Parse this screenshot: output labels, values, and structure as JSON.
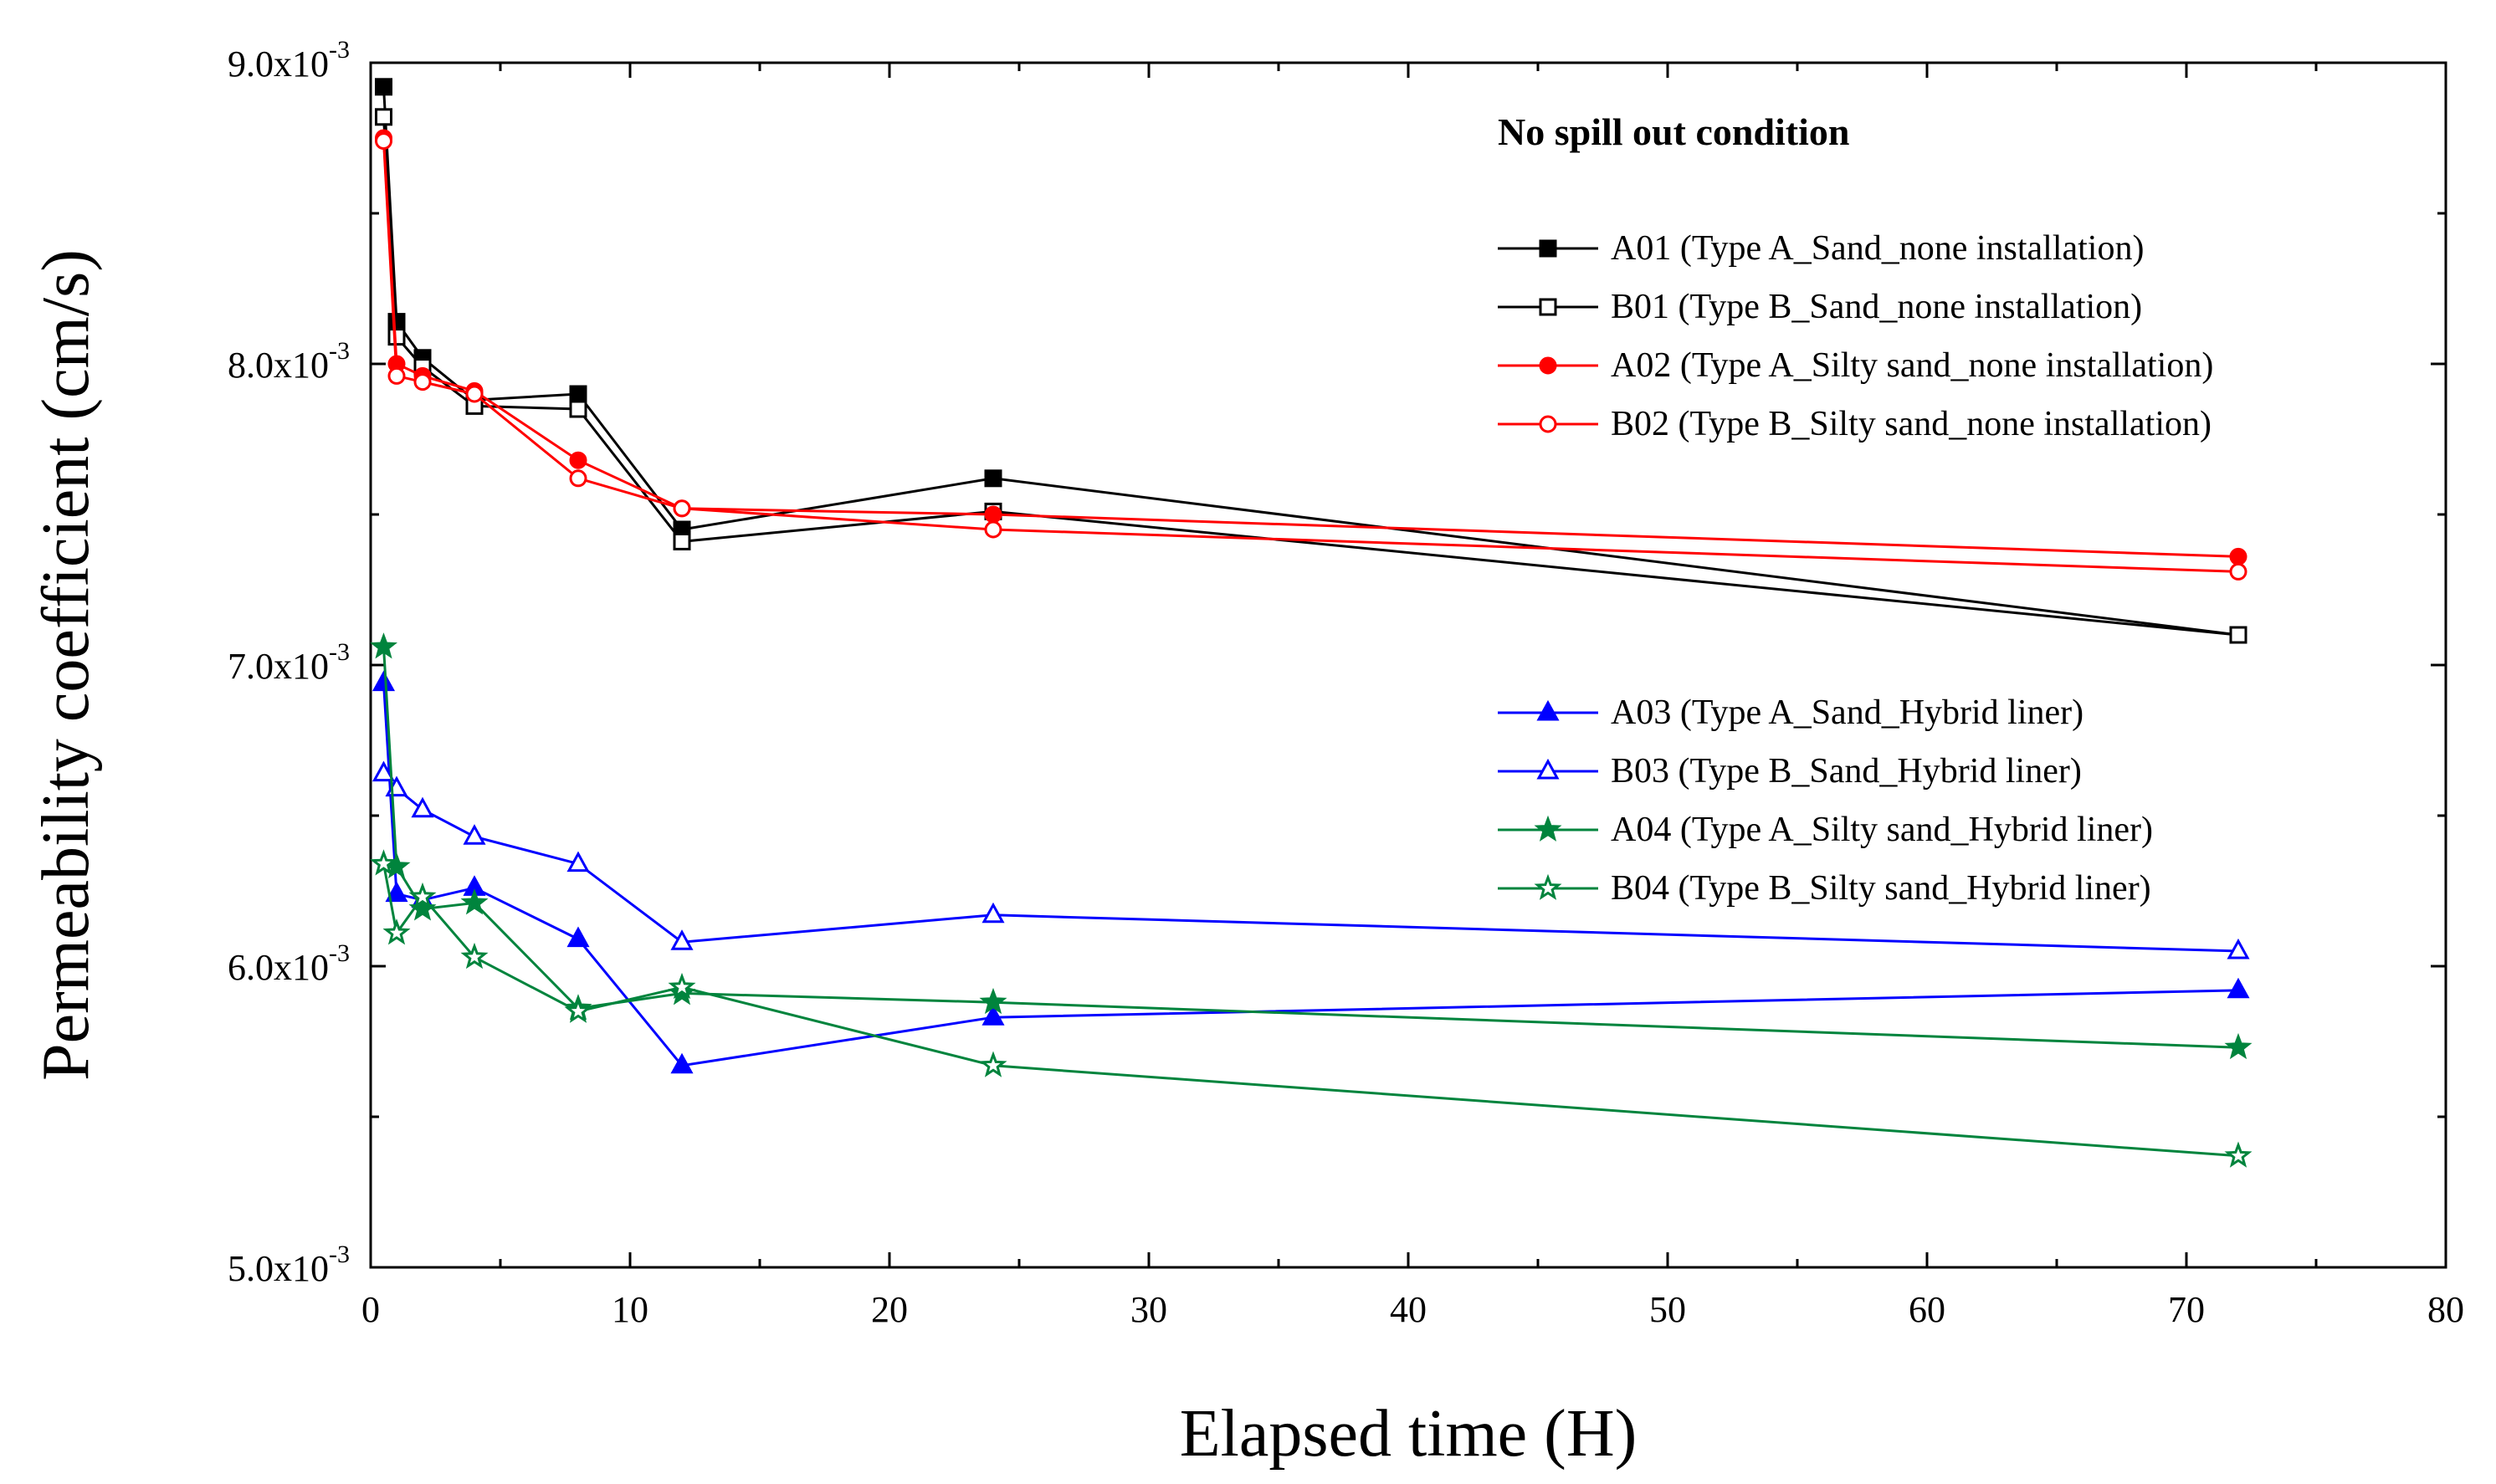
{
  "chart_data": {
    "type": "line",
    "title": "",
    "xlabel": "Elapsed time (H)",
    "ylabel": "Permeability coefficient (cm/s)",
    "xlim": [
      0,
      80
    ],
    "ylim": [
      0.005,
      0.009
    ],
    "x_ticks": [
      0,
      10,
      20,
      30,
      40,
      50,
      60,
      70,
      80
    ],
    "x_tick_labels": [
      "0",
      "10",
      "20",
      "30",
      "40",
      "50",
      "60",
      "70",
      "80"
    ],
    "y_ticks": [
      0.005,
      0.006,
      0.007,
      0.008,
      0.009
    ],
    "y_tick_labels": [
      {
        "mantissa": "5.0x10",
        "exponent": "-3"
      },
      {
        "mantissa": "6.0x10",
        "exponent": "-3"
      },
      {
        "mantissa": "7.0x10",
        "exponent": "-3"
      },
      {
        "mantissa": "8.0x10",
        "exponent": "-3"
      },
      {
        "mantissa": "9.0x10",
        "exponent": "-3"
      }
    ],
    "grid": false,
    "legend_title": "No spill out condition",
    "legend_position": "top-right",
    "x": [
      0.5,
      1,
      2,
      4,
      8,
      12,
      24,
      72
    ],
    "series": [
      {
        "name": "A01 (Type A_Sand_none installation)",
        "color": "#000000",
        "marker": "square",
        "filled": true,
        "values": [
          0.00892,
          0.00814,
          0.00802,
          0.00788,
          0.0079,
          0.00745,
          0.00762,
          0.0071
        ]
      },
      {
        "name": "B01 (Type B_Sand_none installation)",
        "color": "#000000",
        "marker": "square",
        "filled": false,
        "values": [
          0.00882,
          0.00809,
          0.00799,
          0.00786,
          0.00785,
          0.00741,
          0.00751,
          0.0071
        ]
      },
      {
        "name": "A02 (Type A_Silty sand_none installation)",
        "color": "#ff0000",
        "marker": "circle",
        "filled": true,
        "values": [
          0.00875,
          0.008,
          0.00796,
          0.00791,
          0.00768,
          0.00752,
          0.0075,
          0.00736
        ]
      },
      {
        "name": "B02 (Type B_Silty sand_none installation)",
        "color": "#ff0000",
        "marker": "circle",
        "filled": false,
        "values": [
          0.00874,
          0.00796,
          0.00794,
          0.0079,
          0.00762,
          0.00752,
          0.00745,
          0.00731
        ]
      },
      {
        "name": "A03 (Type A_Sand_Hybrid liner)",
        "color": "#0000ff",
        "marker": "triangle",
        "filled": true,
        "values": [
          0.00694,
          0.00624,
          0.00622,
          0.00626,
          0.00609,
          0.00567,
          0.00583,
          0.00592
        ]
      },
      {
        "name": "B03 (Type B_Sand_Hybrid liner)",
        "color": "#0000ff",
        "marker": "triangle",
        "filled": false,
        "values": [
          0.00664,
          0.00659,
          0.00652,
          0.00643,
          0.00634,
          0.00608,
          0.00617,
          0.00605
        ]
      },
      {
        "name": "A04 (Type A_Silty sand_Hybrid liner)",
        "color": "#00843d",
        "marker": "star",
        "filled": true,
        "values": [
          0.00706,
          0.00633,
          0.00619,
          0.00621,
          0.00586,
          0.00591,
          0.00588,
          0.00573
        ]
      },
      {
        "name": "B04 (Type B_Silty sand_Hybrid liner)",
        "color": "#00843d",
        "marker": "star",
        "filled": false,
        "values": [
          0.00634,
          0.00611,
          0.00623,
          0.00603,
          0.00585,
          0.00593,
          0.00567,
          0.00537
        ]
      }
    ]
  }
}
